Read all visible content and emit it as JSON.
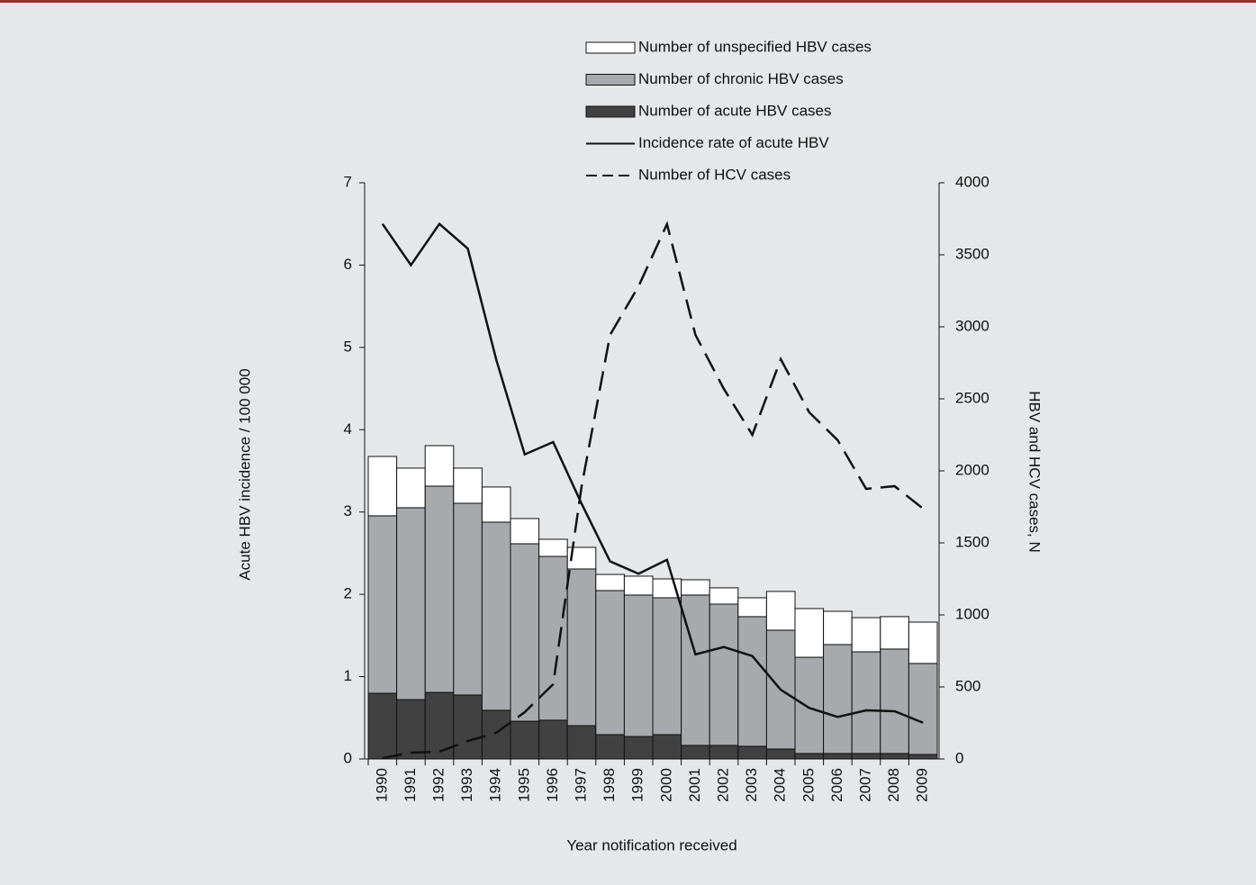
{
  "chart_data": {
    "type": "bar",
    "categories": [
      "1990",
      "1991",
      "1992",
      "1993",
      "1994",
      "1995",
      "1996",
      "1997",
      "1998",
      "1999",
      "2000",
      "2001",
      "2002",
      "2003",
      "2004",
      "2005",
      "2006",
      "2007",
      "2008",
      "2009"
    ],
    "series": [
      {
        "name": "Number of unspecified HBV cases",
        "type": "bar",
        "axis": "y2",
        "color": "#ffffff",
        "values": [
          412,
          275,
          281,
          244,
          244,
          175,
          119,
          150,
          112,
          131,
          131,
          106,
          113,
          131,
          269,
          338,
          231,
          237,
          225,
          287
        ]
      },
      {
        "name": "Number of  chronic HBV cases",
        "type": "bar",
        "axis": "y2",
        "color": "#a8a9ad",
        "values": [
          1232,
          1332,
          1432,
          1331,
          1306,
          1232,
          1137,
          1088,
          1000,
          982,
          950,
          1044,
          981,
          900,
          825,
          668,
          756,
          706,
          725,
          632
        ]
      },
      {
        "name": "Number of  acute HBV cases",
        "type": "bar",
        "axis": "y2",
        "color": "#414142",
        "values": [
          456,
          412,
          462,
          444,
          338,
          262,
          269,
          231,
          169,
          156,
          169,
          94,
          94,
          88,
          69,
          38,
          38,
          38,
          38,
          31
        ]
      },
      {
        "name": "Incidence rate of acute HBV",
        "type": "line",
        "axis": "y",
        "color": "#111111",
        "linestyle": "solid",
        "values": [
          6.5,
          6.0,
          6.5,
          6.2,
          4.85,
          3.7,
          3.85,
          3.1,
          2.4,
          2.25,
          2.42,
          1.27,
          1.36,
          1.25,
          0.84,
          0.62,
          0.51,
          0.59,
          0.58,
          0.44
        ]
      },
      {
        "name": "Number of  HCV cases",
        "type": "line",
        "axis": "y2",
        "color": "#111111",
        "linestyle": "dashed",
        "values": [
          6,
          44,
          50,
          125,
          181,
          325,
          519,
          1894,
          2944,
          3281,
          3713,
          2944,
          2569,
          2250,
          2775,
          2406,
          2213,
          1875,
          1894,
          1738
        ]
      }
    ],
    "xlabel": "Year notification received",
    "ylabel": "Acute HBV incidence / 100 000",
    "y2label": "HBV and HCV cases, N",
    "ylim": [
      0,
      7
    ],
    "yticks": [
      0,
      1,
      2,
      3,
      4,
      5,
      6,
      7
    ],
    "y2lim": [
      0,
      4000
    ],
    "y2ticks": [
      0,
      500,
      1000,
      1500,
      2000,
      2500,
      3000,
      3500,
      4000
    ],
    "legend": "top"
  }
}
